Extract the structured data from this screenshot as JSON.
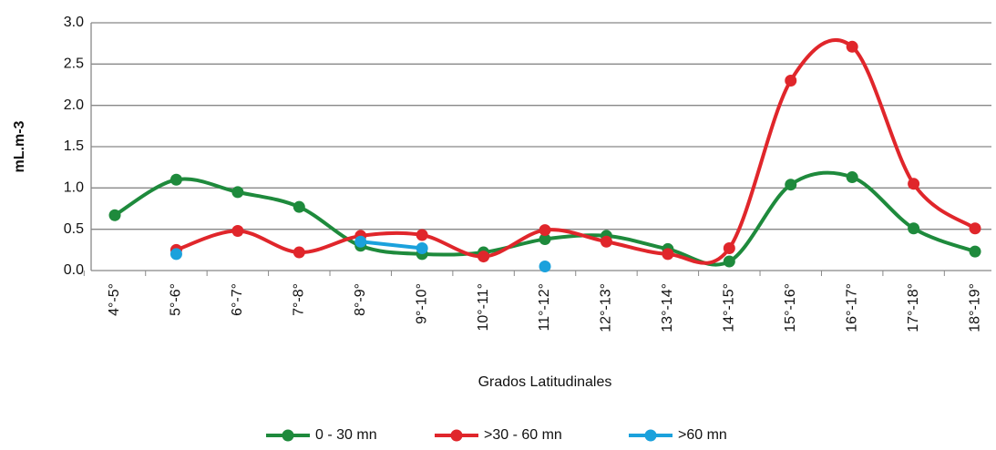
{
  "chart_data": {
    "type": "line",
    "y_label": "mL.m-3",
    "x_label": "Grados Latitudinales",
    "categories": [
      "4°-5°",
      "5°-6°",
      "6°-7°",
      "7°-8°",
      "8°-9°",
      "9°-10°",
      "10°-11°",
      "11°-12°",
      "12°-13°",
      "13°-14°",
      "14°-15°",
      "15°-16°",
      "16°-17°",
      "17°-18°",
      "18°-19°"
    ],
    "series": [
      {
        "name": "0 - 30 mn",
        "color": "#1e8a3c",
        "values": [
          0.67,
          1.1,
          0.95,
          0.77,
          0.3,
          0.2,
          0.22,
          0.38,
          0.42,
          0.26,
          0.11,
          1.04,
          1.13,
          0.51,
          0.23
        ]
      },
      {
        "name": ">30 - 60 mn",
        "color": "#e0262b",
        "values": [
          null,
          0.25,
          0.48,
          0.22,
          0.42,
          0.43,
          0.17,
          0.49,
          0.35,
          0.2,
          0.27,
          2.3,
          2.71,
          1.05,
          0.51
        ]
      },
      {
        "name": ">60 mn",
        "color": "#1ba1dc",
        "values": [
          null,
          0.2,
          null,
          null,
          0.35,
          0.27,
          null,
          0.05,
          null,
          null,
          null,
          null,
          null,
          null,
          null
        ]
      }
    ],
    "ylim": [
      0,
      3
    ],
    "yticks": [
      {
        "value": 0,
        "label": "0.0"
      },
      {
        "value": 0.5,
        "label": "0.5"
      },
      {
        "value": 1,
        "label": "1.0"
      },
      {
        "value": 1.5,
        "label": "1.5"
      },
      {
        "value": 2,
        "label": "2.0"
      },
      {
        "value": 2.5,
        "label": "2.5"
      },
      {
        "value": 3,
        "label": "3.0"
      }
    ],
    "grid": true,
    "smooth": true,
    "legend": "bottom"
  }
}
